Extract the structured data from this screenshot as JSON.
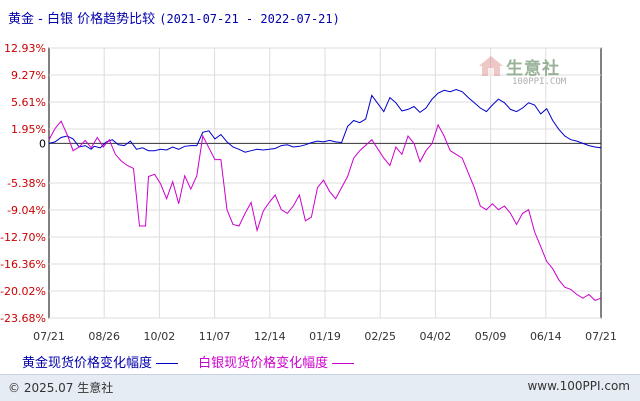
{
  "title": {
    "main": "黄金 - 白银 价格趋势比较",
    "range": "(2021-07-21 - 2022-07-21)"
  },
  "watermark": {
    "cn": "生意社",
    "url": "100PPI.COM"
  },
  "legend": {
    "gold": "黄金现货价格变化幅度",
    "silver": "白银现货价格变化幅度"
  },
  "footer": {
    "copyright": "© 2025.07 生意社",
    "site": "www.100PPI.com"
  },
  "colors": {
    "gold": "#0000cc",
    "silver": "#cc00cc",
    "axis_text": "#cc0000",
    "footer_bg": "#e6ecf3"
  },
  "chart_data": {
    "type": "line",
    "ylim": [
      -23.68,
      12.93
    ],
    "y_ticks": [
      "12.93%",
      "9.27%",
      "5.61%",
      "1.95%",
      "0",
      "-5.38%",
      "-9.04%",
      "-12.70%",
      "-16.36%",
      "-20.02%",
      "-23.68%"
    ],
    "y_tick_values": [
      12.93,
      9.27,
      5.61,
      1.95,
      0,
      -5.38,
      -9.04,
      -12.7,
      -16.36,
      -20.02,
      -23.68
    ],
    "x_ticks": [
      "07/21",
      "08/26",
      "10/02",
      "11/07",
      "12/14",
      "01/19",
      "02/25",
      "04/02",
      "05/09",
      "06/14",
      "07/21"
    ],
    "grid": true,
    "series": [
      {
        "name": "黄金现货价格变化幅度",
        "color": "#0000cc",
        "x": [
          0,
          4,
          8,
          12,
          16,
          20,
          24,
          28,
          30,
          34,
          38,
          42,
          46,
          50,
          54,
          58,
          62,
          66,
          70,
          74,
          78,
          82,
          86,
          90,
          94,
          98,
          102,
          106,
          110,
          114,
          118,
          122,
          126,
          130,
          134,
          138,
          142,
          146,
          150,
          154,
          158,
          162,
          166,
          170,
          174,
          178,
          182,
          186,
          190,
          194,
          198,
          202,
          206,
          210,
          214,
          222,
          226,
          230,
          234,
          238,
          242,
          246,
          250,
          254,
          258,
          262,
          266,
          270,
          274,
          278,
          282,
          286,
          290,
          294,
          298,
          302,
          306,
          310,
          314,
          318,
          322,
          326,
          330,
          334,
          338,
          342,
          346,
          350,
          354,
          358,
          362,
          366
        ],
        "y": [
          0,
          0.2,
          0.8,
          1.0,
          0.6,
          -0.5,
          -0.3,
          -0.8,
          -0.4,
          -0.6,
          0.2,
          0.5,
          -0.2,
          -0.3,
          0.3,
          -0.8,
          -0.6,
          -1.0,
          -1.0,
          -0.8,
          -0.9,
          -0.5,
          -0.8,
          -0.4,
          -0.3,
          -0.3,
          1.5,
          1.7,
          0.6,
          1.2,
          0.2,
          -0.5,
          -0.8,
          -1.2,
          -1.0,
          -0.8,
          -0.9,
          -0.8,
          -0.7,
          -0.3,
          -0.2,
          -0.5,
          -0.4,
          -0.2,
          0.1,
          0.3,
          0.2,
          0.4,
          0.2,
          0.1,
          2.3,
          3.1,
          2.8,
          3.3,
          6.5,
          4.3,
          6.2,
          5.5,
          4.4,
          4.6,
          5.0,
          4.2,
          4.8,
          6.0,
          6.8,
          7.2,
          7.0,
          7.3,
          7.0,
          6.2,
          5.5,
          4.8,
          4.3,
          5.2,
          6.0,
          5.5,
          4.6,
          4.3,
          4.8,
          5.5,
          5.2,
          4.0,
          4.7,
          3.1,
          1.9,
          1.0,
          0.5,
          0.3,
          0.0,
          -0.3,
          -0.5,
          -0.6
        ]
      },
      {
        "name": "白银现货价格变化幅度",
        "color": "#cc00cc",
        "x": [
          0,
          4,
          8,
          12,
          16,
          20,
          24,
          28,
          32,
          36,
          40,
          44,
          48,
          52,
          56,
          60,
          64,
          66,
          70,
          74,
          78,
          82,
          86,
          90,
          94,
          98,
          102,
          106,
          110,
          114,
          118,
          122,
          126,
          130,
          134,
          138,
          142,
          146,
          150,
          154,
          158,
          162,
          166,
          170,
          174,
          178,
          182,
          186,
          190,
          194,
          198,
          202,
          206,
          214,
          222,
          226,
          230,
          234,
          238,
          242,
          246,
          250,
          254,
          258,
          262,
          266,
          270,
          274,
          278,
          282,
          286,
          290,
          294,
          298,
          302,
          306,
          310,
          314,
          318,
          322,
          326,
          330,
          334,
          338,
          342,
          346,
          350,
          354,
          358,
          362,
          366
        ],
        "y": [
          0.5,
          2.0,
          3.0,
          1.2,
          -1.0,
          -0.5,
          0.4,
          -0.6,
          0.8,
          -0.5,
          0.5,
          -1.5,
          -2.4,
          -3.0,
          -3.4,
          -11.2,
          -11.2,
          -4.5,
          -4.2,
          -5.5,
          -7.5,
          -5.2,
          -8.2,
          -4.4,
          -6.2,
          -4.4,
          1.0,
          -0.6,
          -2.2,
          -2.2,
          -9.0,
          -11.0,
          -11.2,
          -9.5,
          -8.0,
          -11.8,
          -9.2,
          -8.0,
          -7.0,
          -9.0,
          -9.5,
          -8.5,
          -7.0,
          -10.5,
          -10.0,
          -6.0,
          -5.0,
          -6.5,
          -7.5,
          -6.0,
          -4.5,
          -2.0,
          -1.0,
          0.5,
          -2.0,
          -3.0,
          -0.5,
          -1.5,
          1.0,
          0.0,
          -2.5,
          -1.0,
          0.0,
          2.5,
          1.0,
          -1.0,
          -1.5,
          -2.0,
          -4.0,
          -6.0,
          -8.5,
          -9.0,
          -8.2,
          -9.0,
          -8.5,
          -9.5,
          -11.0,
          -9.5,
          -9.0,
          -12.0,
          -14.0,
          -16.0,
          -17.0,
          -18.5,
          -19.5,
          -19.8,
          -20.5,
          -21.0,
          -20.5,
          -21.3,
          -21.0
        ]
      }
    ]
  }
}
